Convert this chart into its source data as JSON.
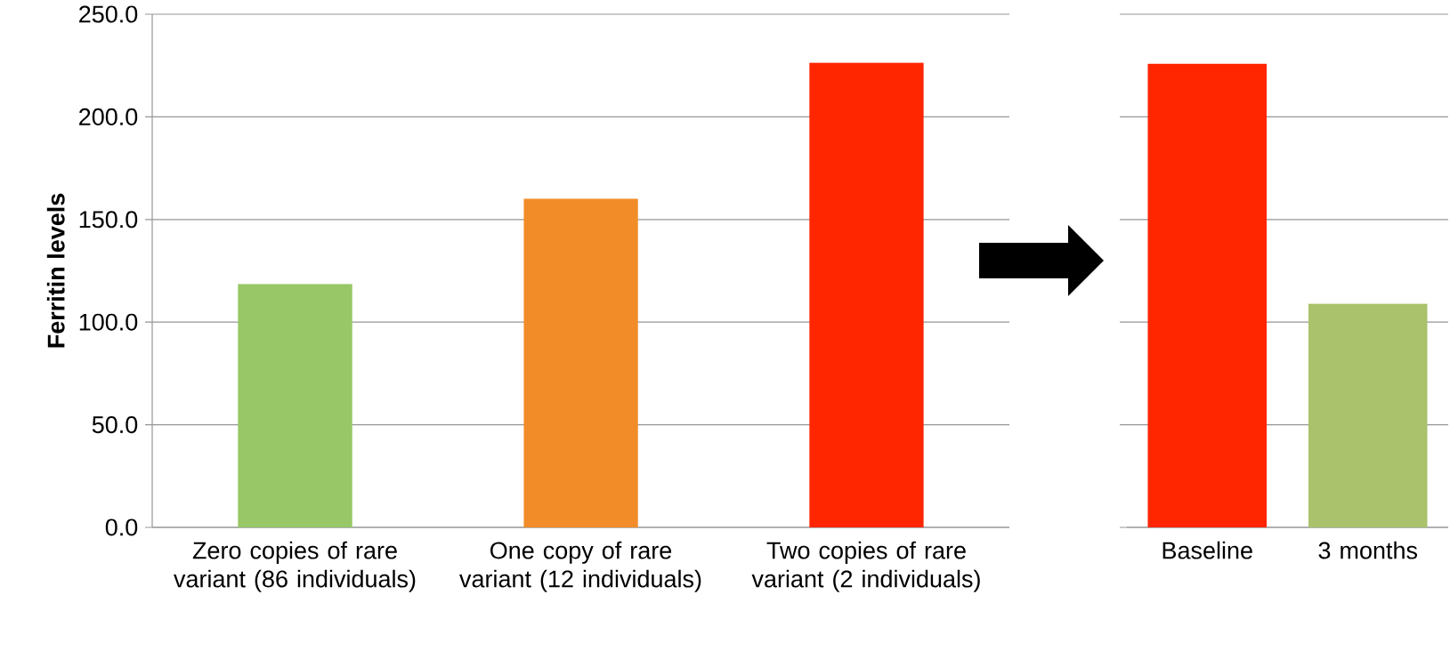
{
  "chart_data": [
    {
      "type": "bar",
      "ylabel": "Ferritin levels",
      "categories": [
        "Zero copies of rare variant (86 individuals)",
        "One copy of rare variant (12 individuals)",
        "Two copies of rare variant (2 individuals)"
      ],
      "values": [
        118.6,
        160.1,
        226.4
      ],
      "colors": [
        "#98c767",
        "#f28c28",
        "#ff2600"
      ],
      "ylim": [
        0,
        250
      ],
      "yticks": [
        {
          "value": 0,
          "label": "0.0"
        },
        {
          "value": 50,
          "label": "50.0"
        },
        {
          "value": 100,
          "label": "100.0"
        },
        {
          "value": 150,
          "label": "150.0"
        },
        {
          "value": 200,
          "label": "200.0"
        },
        {
          "value": 250,
          "label": "250.0"
        }
      ],
      "grid": "y"
    },
    {
      "type": "bar",
      "categories": [
        "Baseline",
        "3 months"
      ],
      "values": [
        225.8,
        109.0
      ],
      "colors": [
        "#ff2600",
        "#a9c26b"
      ],
      "ylim": [
        0,
        250
      ],
      "yticks": [
        0,
        50,
        100,
        150,
        200,
        250
      ],
      "grid": "y",
      "tick_labels": "x"
    }
  ]
}
